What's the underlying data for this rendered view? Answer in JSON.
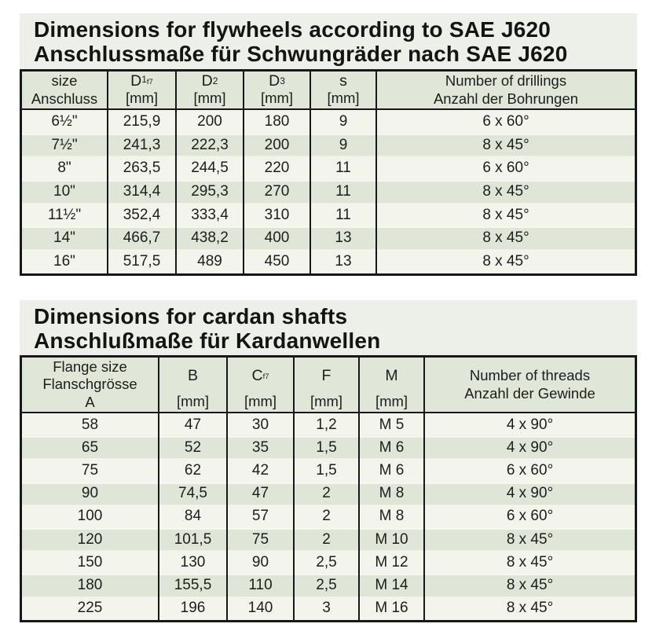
{
  "colors": {
    "title_block_bg": "#edf0e8",
    "table_header_bg": "#e0e6d8",
    "row_plain": "#f3f5ed",
    "row_green": "#dfe6d7",
    "border": "#181818",
    "text": "#1d1d1d"
  },
  "flywheel_section": {
    "title_en": "Dimensions for flywheels according to SAE J620",
    "title_de": "Anschlussmaße für Schwungräder nach SAE J620",
    "table": {
      "columns": [
        {
          "name": "size",
          "lines": [
            "size",
            "Anschluss"
          ]
        },
        {
          "name": "d1f7",
          "symbol": "D",
          "sub": "1",
          "subsub": "f7",
          "unit": "[mm]"
        },
        {
          "name": "d2",
          "symbol": "D",
          "sub": "2",
          "unit": "[mm]"
        },
        {
          "name": "d3",
          "symbol": "D",
          "sub": "3",
          "unit": "[mm]"
        },
        {
          "name": "s",
          "symbol": "s",
          "unit": "[mm]"
        },
        {
          "name": "drillings",
          "lines": [
            "Number of drillings",
            "Anzahl der Bohrungen"
          ]
        }
      ],
      "rows": [
        [
          "6½\"",
          "215,9",
          "200",
          "180",
          "9",
          "6 x 60°"
        ],
        [
          "7½\"",
          "241,3",
          "222,3",
          "200",
          "9",
          "8 x 45°"
        ],
        [
          "8\"",
          "263,5",
          "244,5",
          "220",
          "11",
          "6 x 60°"
        ],
        [
          "10\"",
          "314,4",
          "295,3",
          "270",
          "11",
          "8 x 45°"
        ],
        [
          "11½\"",
          "352,4",
          "333,4",
          "310",
          "11",
          "8 x 45°"
        ],
        [
          "14\"",
          "466,7",
          "438,2",
          "400",
          "13",
          "8 x 45°"
        ],
        [
          "16\"",
          "517,5",
          "489",
          "450",
          "13",
          "8 x 45°"
        ]
      ]
    }
  },
  "cardan_section": {
    "title_en": "Dimensions for cardan shafts",
    "title_de": "Anschlußmaße für Kardanwellen",
    "table": {
      "columns": [
        {
          "name": "flange-size",
          "lines": [
            "Flange size",
            "Flanschgrösse",
            "A"
          ]
        },
        {
          "name": "b",
          "symbol": "B",
          "unit": "[mm]"
        },
        {
          "name": "cf7",
          "symbol": "C",
          "subsub": "f7",
          "unit": "[mm]"
        },
        {
          "name": "f",
          "symbol": "F",
          "unit": "[mm]"
        },
        {
          "name": "m",
          "symbol": "M",
          "unit": "[mm]"
        },
        {
          "name": "threads",
          "lines": [
            "Number of threads",
            "Anzahl der Gewinde"
          ]
        }
      ],
      "rows": [
        [
          "58",
          "47",
          "30",
          "1,2",
          "M 5",
          "4 x 90°"
        ],
        [
          "65",
          "52",
          "35",
          "1,5",
          "M 6",
          "4 x 90°"
        ],
        [
          "75",
          "62",
          "42",
          "1,5",
          "M 6",
          "6 x 60°"
        ],
        [
          "90",
          "74,5",
          "47",
          "2",
          "M 8",
          "4 x 90°"
        ],
        [
          "100",
          "84",
          "57",
          "2",
          "M 8",
          "6 x 60°"
        ],
        [
          "120",
          "101,5",
          "75",
          "2",
          "M 10",
          "8 x 45°"
        ],
        [
          "150",
          "130",
          "90",
          "2,5",
          "M 12",
          "8 x 45°"
        ],
        [
          "180",
          "155,5",
          "110",
          "2,5",
          "M 14",
          "8 x 45°"
        ],
        [
          "225",
          "196",
          "140",
          "3",
          "M 16",
          "8 x 45°"
        ]
      ]
    }
  }
}
